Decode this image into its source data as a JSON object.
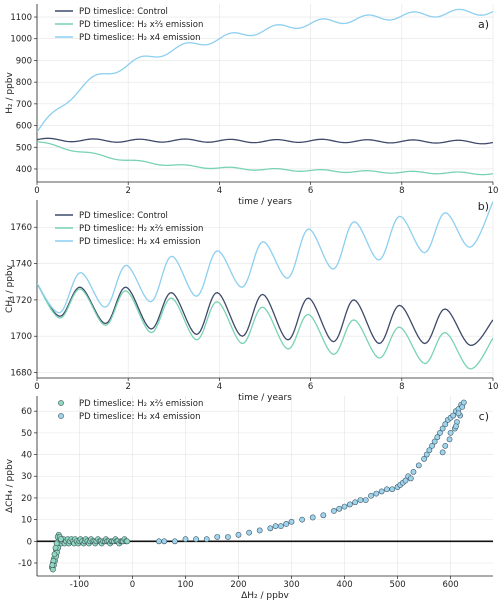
{
  "colors": {
    "control": "#3f4a6b",
    "low": "#79d3b3",
    "high": "#8ccff0",
    "scatter_low_fill": "#8fd9bd",
    "scatter_high_fill": "#9fd4ee",
    "scatter_edge": "#3e5560"
  },
  "chart_data": [
    {
      "type": "line",
      "panel_label": "a)",
      "xlabel": "time / years",
      "ylabel": "H₂ / ppbv",
      "xlim": [
        0,
        10
      ],
      "ylim": [
        340,
        1160
      ],
      "xticks": [
        0,
        2,
        4,
        6,
        8,
        10
      ],
      "yticks": [
        400,
        500,
        600,
        700,
        800,
        900,
        1000,
        1100
      ],
      "grid": true,
      "legend": "top-left",
      "series": [
        {
          "name": "PD timeslice: Control",
          "color_key": "control",
          "seasonal_amplitude": 7,
          "x": [
            0,
            1,
            2,
            3,
            4,
            5,
            6,
            7,
            8,
            9,
            10
          ],
          "y": [
            535,
            532,
            530,
            531,
            530,
            528,
            530,
            528,
            527,
            526,
            522
          ]
        },
        {
          "name": "PD timeslice: H₂ x⅔ emission",
          "color_key": "low",
          "seasonal_amplitude": 5,
          "x": [
            0,
            1,
            2,
            3,
            4,
            5,
            6,
            7,
            8,
            9,
            10
          ],
          "y": [
            525,
            478,
            440,
            418,
            405,
            398,
            393,
            388,
            385,
            382,
            378
          ]
        },
        {
          "name": "PD timeslice: H₂ x4 emission",
          "color_key": "high",
          "seasonal_amplitude": 15,
          "x": [
            0,
            1,
            2,
            3,
            4,
            5,
            6,
            7,
            8,
            9,
            10
          ],
          "y": [
            570,
            780,
            880,
            950,
            1000,
            1040,
            1070,
            1090,
            1105,
            1118,
            1125
          ]
        }
      ]
    },
    {
      "type": "line",
      "panel_label": "b)",
      "xlabel": "time / years",
      "ylabel": "CH₄ / ppbv",
      "xlim": [
        0,
        10
      ],
      "ylim": [
        1677,
        1775
      ],
      "xticks": [
        0,
        2,
        4,
        6,
        8,
        10
      ],
      "yticks": [
        1680,
        1700,
        1720,
        1740,
        1760
      ],
      "grid": true,
      "legend": "top-left",
      "series": [
        {
          "name": "PD timeslice: Control",
          "color_key": "control",
          "x": [
            0,
            0.5,
            0.95,
            1.5,
            1.95,
            2.5,
            2.95,
            3.5,
            3.95,
            4.5,
            4.95,
            5.5,
            5.95,
            6.5,
            6.95,
            7.5,
            7.95,
            8.5,
            8.95,
            9.5,
            10
          ],
          "y": [
            1729,
            1711,
            1727,
            1707,
            1727,
            1704,
            1724,
            1701,
            1724,
            1700,
            1723,
            1698,
            1721,
            1697,
            1720,
            1696,
            1717,
            1696,
            1715,
            1695,
            1709
          ]
        },
        {
          "name": "PD timeslice: H₂ x⅔ emission",
          "color_key": "low",
          "x": [
            0,
            0.5,
            0.95,
            1.5,
            1.95,
            2.5,
            2.95,
            3.5,
            3.95,
            4.5,
            4.95,
            5.5,
            5.95,
            6.5,
            6.95,
            7.5,
            7.95,
            8.5,
            8.95,
            9.5,
            10
          ],
          "y": [
            1729,
            1710,
            1726,
            1706,
            1725,
            1702,
            1721,
            1698,
            1719,
            1696,
            1716,
            1693,
            1712,
            1690,
            1709,
            1688,
            1705,
            1685,
            1702,
            1682,
            1699
          ]
        },
        {
          "name": "PD timeslice: H₂ x4 emission",
          "color_key": "high",
          "x": [
            0,
            0.5,
            0.95,
            1.5,
            1.95,
            2.5,
            2.95,
            3.5,
            3.95,
            4.5,
            4.95,
            5.5,
            5.95,
            6.5,
            6.95,
            7.5,
            7.95,
            8.5,
            8.95,
            9.5,
            10
          ],
          "y": [
            1729,
            1713,
            1735,
            1716,
            1739,
            1719,
            1744,
            1722,
            1747,
            1727,
            1752,
            1732,
            1759,
            1737,
            1763,
            1742,
            1766,
            1746,
            1768,
            1749,
            1774
          ]
        }
      ]
    },
    {
      "type": "scatter",
      "panel_label": "c)",
      "xlabel": "ΔH₂ / ppbv",
      "ylabel": "ΔCH₄ / ppbv",
      "xlim": [
        -180,
        680
      ],
      "ylim": [
        -16,
        67
      ],
      "xticks": [
        -100,
        0,
        100,
        200,
        300,
        400,
        500,
        600
      ],
      "yticks": [
        -10,
        0,
        10,
        20,
        30,
        40,
        50,
        60
      ],
      "grid": true,
      "legend": "top-left",
      "zero_line": true,
      "series": [
        {
          "name": "PD timeslice: H₂ x⅔ emission",
          "color_key": "scatter_low_fill",
          "x": [
            -152,
            -150,
            -148,
            -146,
            -144,
            -142,
            -140,
            -138,
            -136,
            -134,
            -132,
            -130,
            -128,
            -125,
            -122,
            -120,
            -118,
            -115,
            -112,
            -110,
            -108,
            -105,
            -102,
            -100,
            -98,
            -95,
            -92,
            -90,
            -88,
            -85,
            -82,
            -80,
            -78,
            -75,
            -72,
            -70,
            -68,
            -65,
            -62,
            -60,
            -58,
            -55,
            -52,
            -50,
            -48,
            -45,
            -42,
            -40,
            -38,
            -35,
            -32,
            -30,
            -28,
            -25,
            -22,
            -20,
            -18,
            -15,
            -12,
            -10,
            -150,
            -148,
            -146,
            -144,
            -142,
            -140,
            -139,
            -141,
            -143,
            -145,
            -147,
            -149,
            -151,
            -137,
            -135
          ],
          "y": [
            -12,
            -10,
            -8,
            -6,
            -4,
            -2,
            0,
            2,
            1,
            -1,
            0,
            1,
            -1,
            0,
            1,
            -1,
            0,
            1,
            0,
            -1,
            1,
            0,
            -1,
            0,
            1,
            0,
            -1,
            0,
            1,
            0,
            -1,
            0,
            1,
            0,
            0,
            -1,
            0,
            1,
            0,
            0,
            -1,
            0,
            0,
            1,
            0,
            0,
            -1,
            0,
            0,
            0,
            1,
            0,
            0,
            -1,
            0,
            0,
            0,
            1,
            0,
            0,
            -13,
            -11,
            -9,
            -7,
            -5,
            -3,
            3,
            2,
            -1,
            -3,
            -6,
            -9,
            -11,
            2,
            1
          ]
        },
        {
          "name": "PD timeslice: H₂ x4 emission",
          "color_key": "scatter_high_fill",
          "x": [
            50,
            60,
            80,
            100,
            120,
            140,
            160,
            180,
            200,
            220,
            240,
            260,
            270,
            280,
            290,
            300,
            320,
            340,
            360,
            380,
            390,
            400,
            410,
            420,
            430,
            440,
            450,
            460,
            470,
            480,
            490,
            500,
            505,
            510,
            515,
            520,
            525,
            530,
            540,
            550,
            555,
            560,
            565,
            570,
            575,
            580,
            585,
            590,
            595,
            600,
            605,
            610,
            615,
            620,
            600,
            608,
            612,
            618,
            622,
            598,
            590,
            585,
            625,
            615,
            610
          ],
          "y": [
            0,
            0,
            0,
            1,
            1,
            1,
            2,
            2,
            3,
            4,
            5,
            6,
            7,
            7,
            8,
            9,
            10,
            11,
            12,
            14,
            15,
            16,
            17,
            18,
            19,
            19,
            21,
            22,
            23,
            24,
            24,
            25,
            26,
            27,
            28,
            30,
            29,
            32,
            35,
            38,
            40,
            42,
            44,
            46,
            48,
            50,
            52,
            54,
            56,
            57,
            58,
            60,
            61,
            63,
            50,
            52,
            55,
            58,
            62,
            47,
            44,
            41,
            64,
            59,
            53
          ]
        }
      ]
    }
  ]
}
